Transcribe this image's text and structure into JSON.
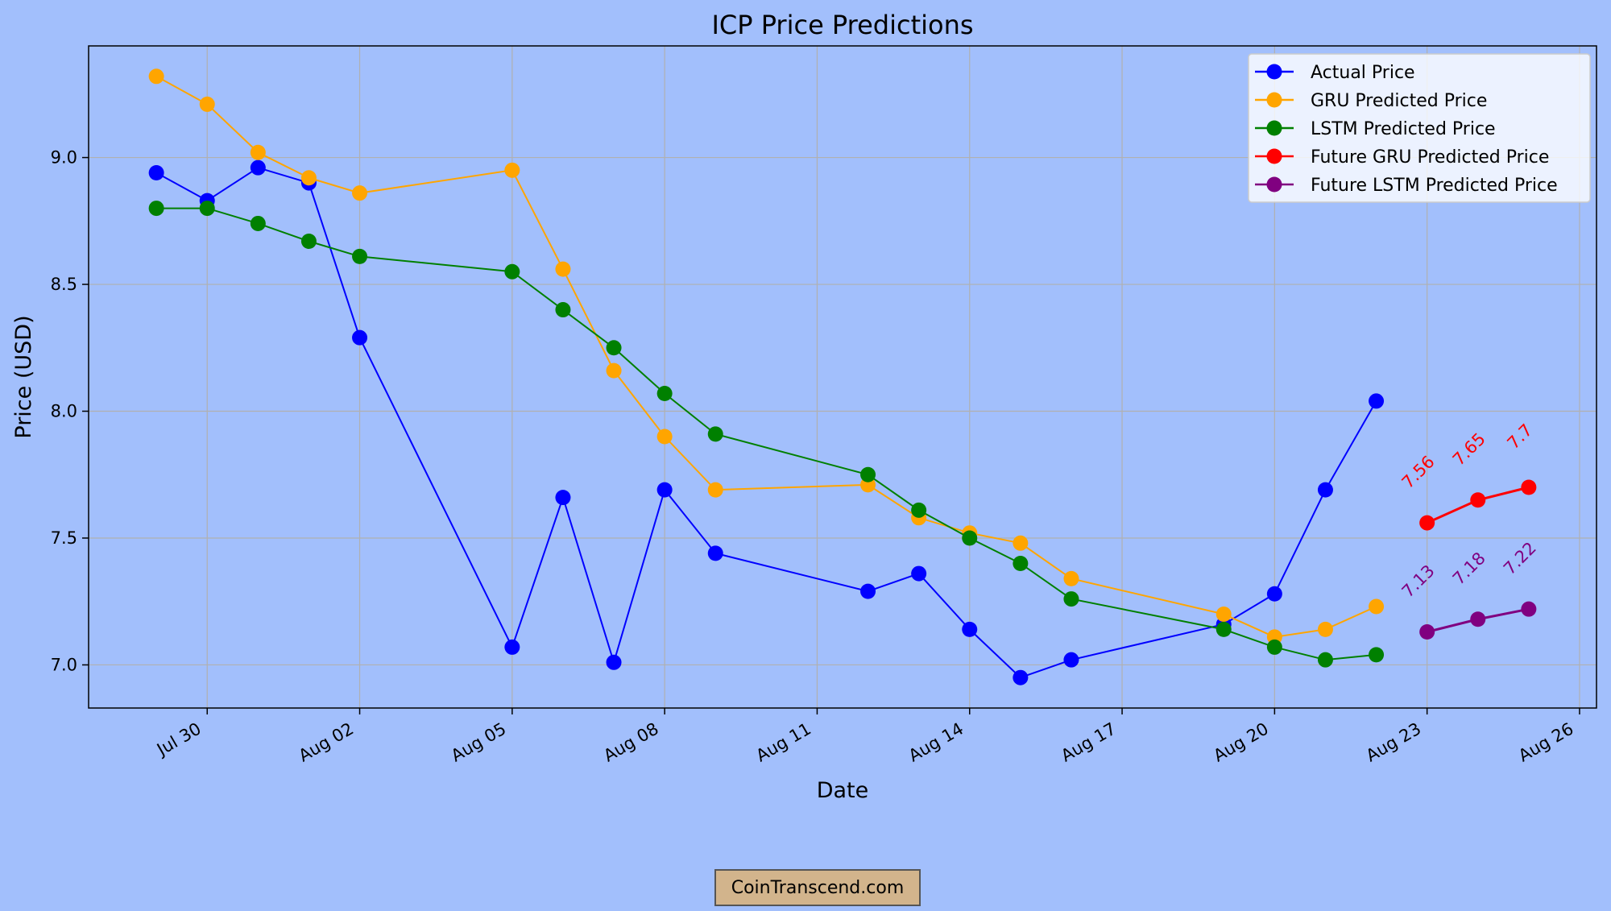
{
  "chart_data": {
    "type": "line",
    "title": "ICP Price Predictions",
    "xlabel": "Date",
    "ylabel": "Price (USD)",
    "x_tick_labels": [
      "Jul 30",
      "Aug 02",
      "Aug 05",
      "Aug 08",
      "Aug 11",
      "Aug 14",
      "Aug 17",
      "Aug 20",
      "Aug 23",
      "Aug 26"
    ],
    "y_tick_labels": [
      "7.0",
      "7.5",
      "8.0",
      "8.5",
      "9.0"
    ],
    "xlim": [
      "2024-07-27 16:00",
      "2024-08-26 08:00"
    ],
    "ylim": [
      6.83,
      9.44
    ],
    "grid": true,
    "legend_position": "top-right",
    "series": [
      {
        "name": "Actual Price",
        "color": "#0000ff",
        "x": [
          "2024-07-29",
          "2024-07-30",
          "2024-07-31",
          "2024-08-01",
          "2024-08-02",
          "2024-08-05",
          "2024-08-06",
          "2024-08-07",
          "2024-08-08",
          "2024-08-09",
          "2024-08-12",
          "2024-08-13",
          "2024-08-14",
          "2024-08-15",
          "2024-08-16",
          "2024-08-19",
          "2024-08-20",
          "2024-08-21",
          "2024-08-22"
        ],
        "values": [
          8.94,
          8.83,
          8.96,
          8.9,
          8.29,
          7.07,
          7.66,
          7.01,
          7.69,
          7.44,
          7.29,
          7.36,
          7.14,
          6.95,
          7.02,
          7.16,
          7.28,
          7.69,
          8.04
        ]
      },
      {
        "name": "GRU Predicted Price",
        "color": "#ffa500",
        "x": [
          "2024-07-29",
          "2024-07-30",
          "2024-07-31",
          "2024-08-01",
          "2024-08-02",
          "2024-08-05",
          "2024-08-06",
          "2024-08-07",
          "2024-08-08",
          "2024-08-09",
          "2024-08-12",
          "2024-08-13",
          "2024-08-14",
          "2024-08-15",
          "2024-08-16",
          "2024-08-19",
          "2024-08-20",
          "2024-08-21",
          "2024-08-22"
        ],
        "values": [
          9.32,
          9.21,
          9.02,
          8.92,
          8.86,
          8.95,
          8.56,
          8.16,
          7.9,
          7.69,
          7.71,
          7.58,
          7.52,
          7.48,
          7.34,
          7.2,
          7.11,
          7.14,
          7.23
        ]
      },
      {
        "name": "LSTM Predicted Price",
        "color": "#008000",
        "x": [
          "2024-07-29",
          "2024-07-30",
          "2024-07-31",
          "2024-08-01",
          "2024-08-02",
          "2024-08-05",
          "2024-08-06",
          "2024-08-07",
          "2024-08-08",
          "2024-08-09",
          "2024-08-12",
          "2024-08-13",
          "2024-08-14",
          "2024-08-15",
          "2024-08-16",
          "2024-08-19",
          "2024-08-20",
          "2024-08-21",
          "2024-08-22"
        ],
        "values": [
          8.8,
          8.8,
          8.74,
          8.67,
          8.61,
          8.55,
          8.4,
          8.25,
          8.07,
          7.91,
          7.75,
          7.61,
          7.5,
          7.4,
          7.26,
          7.14,
          7.07,
          7.02,
          7.04
        ]
      },
      {
        "name": "Future GRU Predicted Price",
        "color": "#ff0000",
        "x": [
          "2024-08-23",
          "2024-08-24",
          "2024-08-25"
        ],
        "values": [
          7.56,
          7.65,
          7.7
        ],
        "data_labels": [
          "7.56",
          "7.65",
          "7.7"
        ]
      },
      {
        "name": "Future LSTM Predicted Price",
        "color": "#800080",
        "x": [
          "2024-08-23",
          "2024-08-24",
          "2024-08-25"
        ],
        "values": [
          7.13,
          7.18,
          7.22
        ],
        "data_labels": [
          "7.13",
          "7.18",
          "7.22"
        ]
      }
    ]
  },
  "watermark": "CoinTranscend.com"
}
